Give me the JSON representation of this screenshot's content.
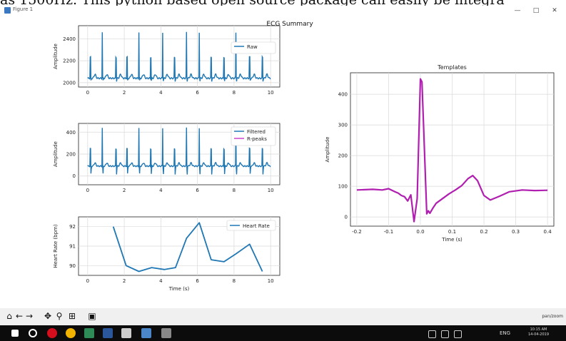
{
  "banner_text": "as 1500Hz. This python based open source package can easily be integra",
  "window": {
    "title": "Figure 1",
    "min": "—",
    "max": "□",
    "close": "✕"
  },
  "figure_title": "ECG Summary",
  "toolbar": {
    "icons": [
      "home-icon",
      "back-arrow-icon",
      "forward-arrow-icon",
      "pan-icon",
      "zoom-icon",
      "subplots-icon",
      "save-icon"
    ],
    "glyphs": [
      "⌂",
      "←",
      "→",
      "✥",
      "⚲",
      "⊞",
      "▣"
    ],
    "coordinate_readout": "pan/zoom"
  },
  "taskbar": {
    "icons": [
      "windows-start-icon",
      "search-icon",
      "opera-icon",
      "chrome-icon",
      "app-green-icon",
      "word-icon",
      "terminal-icon",
      "python-icon",
      "photos-icon"
    ],
    "colors": [
      "#ffffff",
      "#ffffff",
      "#d40e1c",
      "#f2b400",
      "#2e8b57",
      "#2b579a",
      "#cccccc",
      "#4a86c8",
      "#888888"
    ],
    "tray_lang": "ENG",
    "time": "10:15 AM",
    "date": "14-04-2019"
  },
  "chart_data": [
    {
      "type": "line",
      "id": "raw",
      "xlabel": "",
      "ylabel": "Amplitude",
      "xlim": [
        -0.5,
        10.5
      ],
      "ylim": [
        1960,
        2520
      ],
      "xticks": [
        0,
        2,
        4,
        6,
        8,
        10
      ],
      "yticks": [
        2000,
        2200,
        2400
      ],
      "grid": true,
      "legend_position": "center-right",
      "series": [
        {
          "name": "Raw",
          "color": "#1f77b4",
          "baseline": 2040,
          "peak": 2460,
          "trough": 2010
        }
      ],
      "r_peaks": [
        0.15,
        0.8,
        1.55,
        2.15,
        2.8,
        3.45,
        4.1,
        4.75,
        5.4,
        6.1,
        6.75,
        7.45,
        8.1,
        8.85,
        9.55
      ]
    },
    {
      "type": "line",
      "id": "filtered",
      "xlabel": "",
      "ylabel": "Amplitude",
      "xlim": [
        -0.5,
        10.5
      ],
      "ylim": [
        -80,
        480
      ],
      "xticks": [
        0,
        2,
        4,
        6,
        8,
        10
      ],
      "yticks": [
        0,
        200,
        400
      ],
      "grid": true,
      "legend_position": "top-right",
      "series": [
        {
          "name": "Filtered",
          "color": "#1f77b4",
          "baseline": 90,
          "peak": 440,
          "trough": 0
        },
        {
          "name": "R-peaks",
          "color": "#cc44cc"
        }
      ],
      "r_peaks": [
        0.15,
        0.8,
        1.55,
        2.15,
        2.8,
        3.45,
        4.1,
        4.75,
        5.4,
        6.1,
        6.75,
        7.45,
        8.1,
        8.85,
        9.55
      ]
    },
    {
      "type": "line",
      "id": "heart_rate",
      "xlabel": "Time (s)",
      "ylabel": "Heart Rate (bpm)",
      "xlim": [
        -0.5,
        10.5
      ],
      "ylim": [
        89.5,
        92.5
      ],
      "xticks": [
        0,
        2,
        4,
        6,
        8,
        10
      ],
      "yticks": [
        90,
        91,
        92
      ],
      "grid": true,
      "legend_position": "top-right",
      "series": [
        {
          "name": "Heart Rate",
          "color": "#1f77b4",
          "x": [
            1.4,
            2.1,
            2.8,
            3.5,
            4.2,
            4.8,
            5.4,
            6.1,
            6.75,
            7.45,
            8.1,
            8.85,
            9.55
          ],
          "y": [
            92.0,
            90.0,
            89.7,
            89.9,
            89.8,
            89.9,
            91.4,
            92.2,
            90.3,
            90.2,
            90.6,
            91.1,
            89.7
          ]
        }
      ]
    },
    {
      "type": "line",
      "id": "templates",
      "title": "Templates",
      "xlabel": "Time (s)",
      "ylabel": "Amplitude",
      "xlim": [
        -0.22,
        0.42
      ],
      "ylim": [
        -30,
        470
      ],
      "xticks": [
        -0.2,
        -0.1,
        0.0,
        0.1,
        0.2,
        0.3,
        0.4
      ],
      "xtick_labels": [
        "-0.2",
        "-0.1",
        "0.0",
        "0.1",
        "0.2",
        "0.3",
        "0.4"
      ],
      "yticks": [
        0,
        100,
        200,
        300,
        400
      ],
      "grid": true,
      "series": [
        {
          "name": "",
          "color": "#b01fb0",
          "x": [
            -0.2,
            -0.15,
            -0.12,
            -0.1,
            -0.08,
            -0.07,
            -0.06,
            -0.05,
            -0.04,
            -0.03,
            -0.02,
            -0.01,
            0.0,
            0.005,
            0.01,
            0.02,
            0.025,
            0.03,
            0.04,
            0.05,
            0.07,
            0.09,
            0.11,
            0.13,
            0.15,
            0.165,
            0.18,
            0.2,
            0.22,
            0.25,
            0.28,
            0.32,
            0.36,
            0.4
          ],
          "y": [
            88,
            90,
            88,
            92,
            82,
            78,
            70,
            66,
            52,
            72,
            -15,
            60,
            450,
            440,
            300,
            10,
            20,
            12,
            30,
            45,
            60,
            75,
            88,
            102,
            125,
            135,
            118,
            70,
            55,
            68,
            82,
            88,
            86,
            87
          ]
        }
      ]
    }
  ]
}
